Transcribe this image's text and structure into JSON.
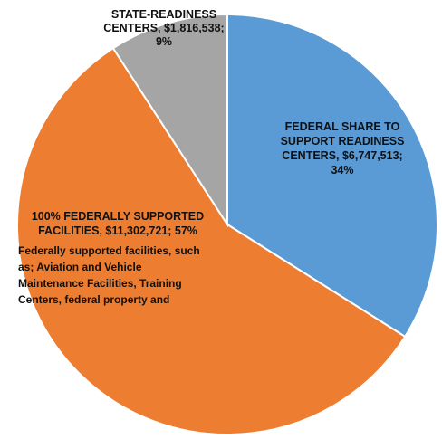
{
  "chart_data": {
    "type": "pie",
    "title": "",
    "slices": [
      {
        "label_lines": [
          "FEDERAL SHARE TO",
          "SUPPORT READINESS",
          "CENTERS, $6,747,513;",
          "34%"
        ],
        "value": 6747513,
        "percent": 34,
        "color": "#5b9bd5"
      },
      {
        "label_lines": [
          "100%  FEDERALLY SUPPORTED",
          "FACILITIES, $11,302,721; 57%"
        ],
        "value": 11302721,
        "percent": 57,
        "color": "#ed7d31"
      },
      {
        "label_lines": [
          "STATE-READINESS",
          "CENTERS, $1,816,538;",
          "9%"
        ],
        "value": 1816538,
        "percent": 9,
        "color": "#a5a5a5"
      }
    ],
    "annotation_lines": [
      "Federally supported facilities, such",
      "as; Aviation and Vehicle",
      "Maintenance Facilities, Training",
      "Centers, federal property and"
    ]
  }
}
